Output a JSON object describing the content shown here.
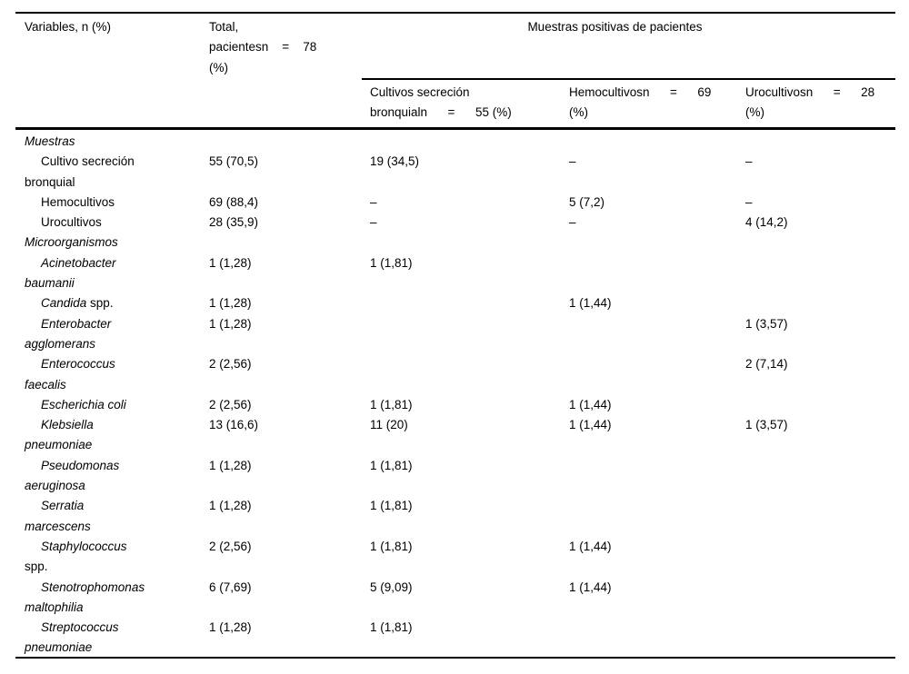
{
  "table": {
    "header": {
      "col_variables": "Variables, n (%)",
      "col_total": "Total,\npacientesn    =    78\n(%)",
      "group_header": "Muestras positivas de pacientes",
      "col_cultivos": "Cultivos secreción\nbronquialn      =      55 (%)",
      "col_hemocultivos": "Hemocultivosn      =      69\n(%)",
      "col_urocultivos": "Urocultivosn      =      28\n(%)"
    },
    "rows": [
      {
        "type": "section",
        "indent": false,
        "segments": [
          {
            "text": "Muestras",
            "italic": true
          }
        ],
        "cells": [
          "",
          "",
          "",
          ""
        ]
      },
      {
        "type": "item",
        "indent": true,
        "segments": [
          {
            "text": "Cultivo secreción\nbronquial",
            "italic": false
          }
        ],
        "cells": [
          "55 (70,5)",
          "19 (34,5)",
          "–",
          "–"
        ]
      },
      {
        "type": "item",
        "indent": true,
        "segments": [
          {
            "text": "Hemocultivos",
            "italic": false
          }
        ],
        "cells": [
          "69 (88,4)",
          "–",
          "5 (7,2)",
          "–"
        ]
      },
      {
        "type": "item",
        "indent": true,
        "segments": [
          {
            "text": "Urocultivos",
            "italic": false
          }
        ],
        "cells": [
          "28 (35,9)",
          "–",
          "–",
          "4 (14,2)"
        ]
      },
      {
        "type": "section",
        "indent": false,
        "segments": [
          {
            "text": "Microorganismos",
            "italic": true
          }
        ],
        "cells": [
          "",
          "",
          "",
          ""
        ]
      },
      {
        "type": "item",
        "indent": true,
        "segments": [
          {
            "text": "Acinetobacter\nbaumanii",
            "italic": true
          }
        ],
        "cells": [
          "1 (1,28)",
          "1 (1,81)",
          "",
          ""
        ]
      },
      {
        "type": "item",
        "indent": true,
        "segments": [
          {
            "text": "Candida",
            "italic": true
          },
          {
            "text": " spp.",
            "italic": false
          }
        ],
        "cells": [
          "1 (1,28)",
          "",
          "1 (1,44)",
          ""
        ]
      },
      {
        "type": "item",
        "indent": true,
        "segments": [
          {
            "text": "Enterobacter\nagglomerans",
            "italic": true
          }
        ],
        "cells": [
          "1 (1,28)",
          "",
          "",
          "1 (3,57)"
        ]
      },
      {
        "type": "item",
        "indent": true,
        "segments": [
          {
            "text": "Enterococcus\nfaecalis",
            "italic": true
          }
        ],
        "cells": [
          "2 (2,56)",
          "",
          "",
          "2 (7,14)"
        ]
      },
      {
        "type": "item",
        "indent": true,
        "segments": [
          {
            "text": "Escherichia coli",
            "italic": true
          }
        ],
        "cells": [
          "2 (2,56)",
          "1 (1,81)",
          "1 (1,44)",
          ""
        ]
      },
      {
        "type": "item",
        "indent": true,
        "segments": [
          {
            "text": "Klebsiella\npneumoniae",
            "italic": true
          }
        ],
        "cells": [
          "13 (16,6)",
          "11 (20)",
          "1 (1,44)",
          "1 (3,57)"
        ]
      },
      {
        "type": "item",
        "indent": true,
        "segments": [
          {
            "text": "Pseudomonas\naeruginosa",
            "italic": true
          }
        ],
        "cells": [
          "1 (1,28)",
          "1 (1,81)",
          "",
          ""
        ]
      },
      {
        "type": "item",
        "indent": true,
        "segments": [
          {
            "text": "Serratia\nmarcescens",
            "italic": true
          }
        ],
        "cells": [
          "1 (1,28)",
          "1 (1,81)",
          "",
          ""
        ]
      },
      {
        "type": "item",
        "indent": true,
        "segments": [
          {
            "text": "Staphylococcus",
            "italic": true
          },
          {
            "text": "\nspp.",
            "italic": false
          }
        ],
        "cells": [
          "2 (2,56)",
          "1 (1,81)",
          "1 (1,44)",
          ""
        ]
      },
      {
        "type": "item",
        "indent": true,
        "segments": [
          {
            "text": "Stenotrophomonas\nmaltophilia",
            "italic": true
          }
        ],
        "cells": [
          "6 (7,69)",
          "5 (9,09)",
          "1 (1,44)",
          ""
        ]
      },
      {
        "type": "item",
        "indent": true,
        "segments": [
          {
            "text": "Streptococcus\npneumoniae",
            "italic": true
          }
        ],
        "cells": [
          "1 (1,28)",
          "1 (1,81)",
          "",
          ""
        ]
      }
    ]
  }
}
